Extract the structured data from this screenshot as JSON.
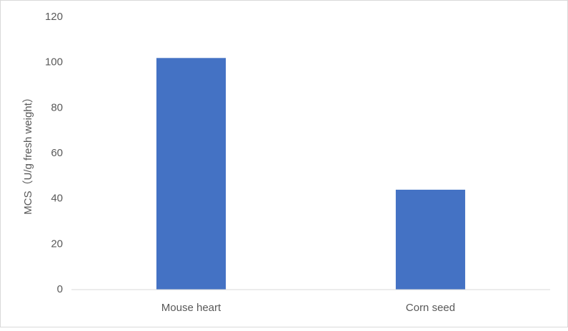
{
  "chart_data": {
    "type": "bar",
    "y_label": "MCS（U/g fresh weight）",
    "categories": [
      "Mouse heart",
      "Corn seed"
    ],
    "values": [
      102,
      44
    ],
    "color": "#4472c4",
    "ylim": [
      0,
      120
    ],
    "yticks": [
      0,
      20,
      40,
      60,
      80,
      100,
      120
    ],
    "grid": false
  }
}
